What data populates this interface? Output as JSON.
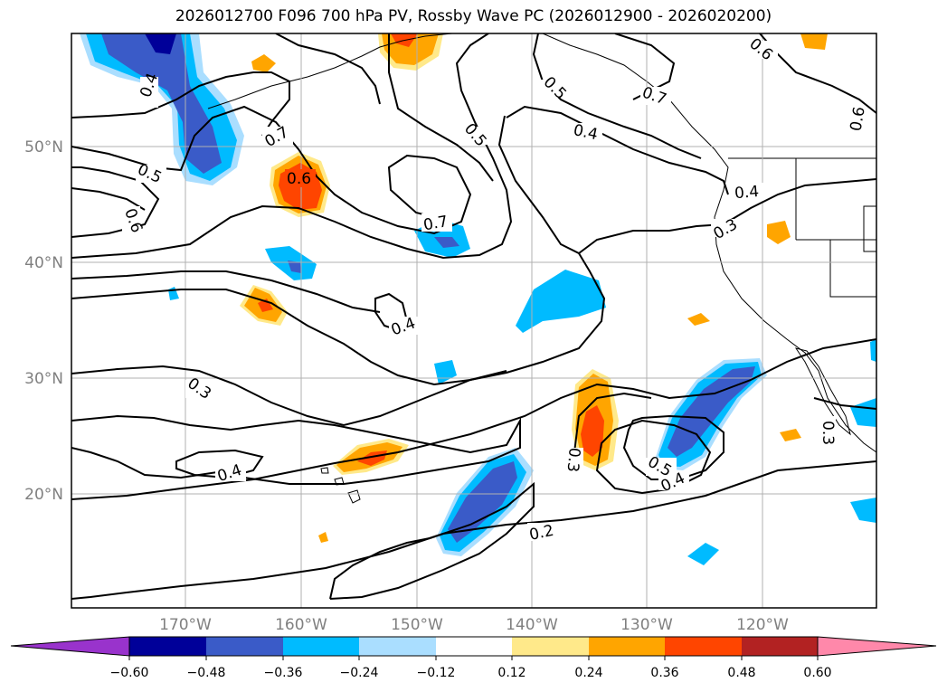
{
  "title": "2026012700 F096 700 hPa PV, Rossby Wave PC (2026012900 - 2026020200)",
  "lat_labels": [
    "20°N",
    "30°N",
    "40°N",
    "50°N"
  ],
  "lon_labels": [
    "170°W",
    "160°W",
    "150°W",
    "140°W",
    "130°W",
    "120°W"
  ],
  "colorbar": {
    "ticks": [
      "−0.60",
      "−0.48",
      "−0.36",
      "−0.24",
      "−0.12",
      "0.12",
      "0.24",
      "0.36",
      "0.48",
      "0.60"
    ],
    "colors": [
      "#9933cc",
      "#000099",
      "#3a5bc8",
      "#00bbff",
      "#aadeff",
      "#ffffff",
      "#ffe98a",
      "#ffa500",
      "#ff4500",
      "#b22222",
      "#ff88aa"
    ]
  },
  "contour_labels": [
    "0.2",
    "0.3",
    "0.3",
    "0.3",
    "0.4",
    "0.4",
    "0.4",
    "0.4",
    "0.4",
    "0.4",
    "0.5",
    "0.5",
    "0.5",
    "0.5",
    "0.6",
    "0.6",
    "0.6",
    "0.6",
    "0.7",
    "0.7",
    "0.7",
    "0.3"
  ],
  "shading": {
    "negative_colors": [
      "#aadeff",
      "#00bbff",
      "#3a5bc8",
      "#000099"
    ],
    "positive_colors": [
      "#ffe98a",
      "#ffa500",
      "#ff4500"
    ]
  }
}
